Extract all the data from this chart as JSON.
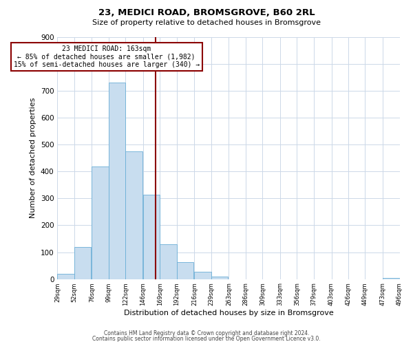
{
  "title": "23, MEDICI ROAD, BROMSGROVE, B60 2RL",
  "subtitle": "Size of property relative to detached houses in Bromsgrove",
  "xlabel": "Distribution of detached houses by size in Bromsgrove",
  "ylabel": "Number of detached properties",
  "bar_color": "#c8ddef",
  "bar_edge_color": "#6aaed6",
  "bin_edges": [
    29,
    52,
    76,
    99,
    122,
    146,
    169,
    192,
    216,
    239,
    263,
    286,
    309,
    333,
    356,
    379,
    403,
    426,
    449,
    473,
    496
  ],
  "bin_labels": [
    "29sqm",
    "52sqm",
    "76sqm",
    "99sqm",
    "122sqm",
    "146sqm",
    "169sqm",
    "192sqm",
    "216sqm",
    "239sqm",
    "263sqm",
    "286sqm",
    "309sqm",
    "333sqm",
    "356sqm",
    "379sqm",
    "403sqm",
    "426sqm",
    "449sqm",
    "473sqm",
    "496sqm"
  ],
  "counts": [
    20,
    120,
    420,
    730,
    475,
    315,
    130,
    63,
    28,
    8,
    0,
    0,
    0,
    0,
    0,
    0,
    0,
    0,
    0,
    5
  ],
  "vline_x": 163,
  "vline_color": "#8b0000",
  "annotation_line1": "23 MEDICI ROAD: 163sqm",
  "annotation_line2": "← 85% of detached houses are smaller (1,982)",
  "annotation_line3": "15% of semi-detached houses are larger (340) →",
  "annotation_box_color": "#8b0000",
  "ylim": [
    0,
    900
  ],
  "yticks": [
    0,
    100,
    200,
    300,
    400,
    500,
    600,
    700,
    800,
    900
  ],
  "footer_line1": "Contains HM Land Registry data © Crown copyright and database right 2024.",
  "footer_line2": "Contains public sector information licensed under the Open Government Licence v3.0.",
  "background_color": "#ffffff",
  "grid_color": "#ccd8e8"
}
